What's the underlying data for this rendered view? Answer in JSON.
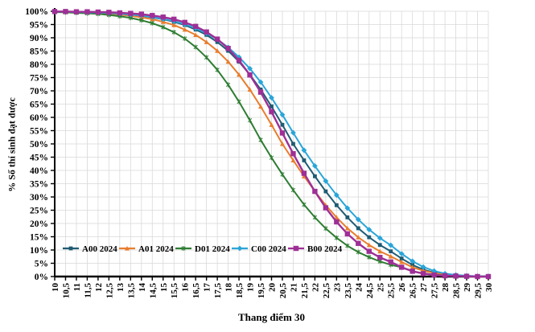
{
  "chart_data": {
    "type": "line",
    "title": "",
    "xlabel": "Thang điểm 30",
    "ylabel": "% Số thí sinh đạt được",
    "xlim": [
      10,
      30
    ],
    "ylim": [
      0,
      100
    ],
    "grid": true,
    "legend_position": "inside-bottom-left",
    "x": [
      10,
      10.5,
      11,
      11.5,
      12,
      12.5,
      13,
      13.5,
      14,
      14.5,
      15,
      15.5,
      16,
      16.5,
      17,
      17.5,
      18,
      18.5,
      19,
      19.5,
      20,
      20.5,
      21,
      21.5,
      22,
      22.5,
      23,
      23.5,
      24,
      24.5,
      25,
      25.5,
      26,
      26.5,
      27,
      27.5,
      28,
      28.5,
      29,
      29.5,
      30
    ],
    "x_tick_labels": [
      "10",
      "10,5",
      "11",
      "11,5",
      "12",
      "12,5",
      "13",
      "13,5",
      "14",
      "14,5",
      "15",
      "15,5",
      "16",
      "16,5",
      "17",
      "17,5",
      "18",
      "18,5",
      "19",
      "19,5",
      "20",
      "20,5",
      "21",
      "21,5",
      "22",
      "22,5",
      "23",
      "23,5",
      "24",
      "24,5",
      "25",
      "25,5",
      "26",
      "26,5",
      "27",
      "27,5",
      "28",
      "28,5",
      "29",
      "29,5",
      "30"
    ],
    "y_tick_labels": [
      "0%",
      "5%",
      "10%",
      "15%",
      "20%",
      "25%",
      "30%",
      "35%",
      "40%",
      "45%",
      "50%",
      "55%",
      "60%",
      "65%",
      "70%",
      "75%",
      "80%",
      "85%",
      "90%",
      "95%",
      "100%"
    ],
    "y_ticks": [
      0,
      5,
      10,
      15,
      20,
      25,
      30,
      35,
      40,
      45,
      50,
      55,
      60,
      65,
      70,
      75,
      80,
      85,
      90,
      95,
      100
    ],
    "gridline_color": "#d9d9d9",
    "axis_color": "#000000",
    "series": [
      {
        "name": "A00 2024",
        "color": "#1f5b73",
        "marker": "square",
        "values": [
          99.8,
          99.8,
          99.7,
          99.6,
          99.5,
          99.3,
          99.0,
          98.7,
          98.3,
          97.7,
          97.0,
          96.0,
          94.8,
          93.1,
          91.1,
          88.4,
          85.1,
          81.0,
          76.1,
          70.5,
          64.1,
          57.2,
          50.0,
          43.8,
          37.8,
          32.1,
          26.9,
          22.3,
          18.2,
          14.8,
          11.9,
          9.5,
          6.8,
          4.4,
          2.6,
          1.5,
          0.8,
          0.4,
          0.2,
          0.1,
          0.0
        ]
      },
      {
        "name": "A01 2024",
        "color": "#e87d2e",
        "marker": "triangle",
        "values": [
          99.8,
          99.7,
          99.6,
          99.5,
          99.3,
          99.0,
          98.7,
          98.3,
          97.7,
          97.0,
          96.0,
          94.8,
          93.1,
          91.1,
          88.4,
          85.1,
          81.0,
          76.1,
          70.5,
          64.1,
          57.2,
          50.0,
          43.8,
          37.8,
          32.1,
          26.9,
          22.3,
          18.2,
          14.8,
          11.9,
          9.5,
          7.6,
          5.5,
          3.5,
          2.2,
          1.3,
          0.7,
          0.4,
          0.2,
          0.1,
          0.0
        ]
      },
      {
        "name": "D01 2024",
        "color": "#2e7d32",
        "marker": "asterisk",
        "values": [
          99.7,
          99.6,
          99.4,
          99.2,
          99.0,
          98.6,
          98.1,
          97.5,
          96.6,
          95.5,
          94.0,
          92.1,
          89.7,
          86.5,
          82.6,
          77.9,
          72.3,
          65.9,
          58.9,
          51.5,
          44.8,
          38.5,
          32.6,
          27.1,
          22.3,
          18.1,
          14.6,
          11.6,
          9.2,
          7.3,
          5.7,
          4.4,
          3.5,
          2.0,
          1.2,
          0.7,
          0.4,
          0.2,
          0.1,
          0.1,
          0.0
        ]
      },
      {
        "name": "C00 2024",
        "color": "#2aa5d8",
        "marker": "diamond",
        "values": [
          99.8,
          99.8,
          99.7,
          99.6,
          99.5,
          99.3,
          99.1,
          98.7,
          98.4,
          97.8,
          97.1,
          96.3,
          95.1,
          93.6,
          91.7,
          89.4,
          86.4,
          82.7,
          78.4,
          73.3,
          67.4,
          61.0,
          54.2,
          47.6,
          41.7,
          36.0,
          30.7,
          25.8,
          21.5,
          17.7,
          14.5,
          11.8,
          8.6,
          5.8,
          3.6,
          2.1,
          1.1,
          0.6,
          0.3,
          0.1,
          0.1
        ]
      },
      {
        "name": "B00 2024",
        "color": "#9e2f96",
        "marker": "square-large",
        "values": [
          99.9,
          99.9,
          99.8,
          99.8,
          99.7,
          99.6,
          99.4,
          99.2,
          98.9,
          98.4,
          97.8,
          97.0,
          95.8,
          94.3,
          92.2,
          89.5,
          86.0,
          81.5,
          76.0,
          69.5,
          62.1,
          54.1,
          46.3,
          38.9,
          32.1,
          25.9,
          20.6,
          16.1,
          12.5,
          9.5,
          7.2,
          5.5,
          3.5,
          2.0,
          1.1,
          0.6,
          0.3,
          0.2,
          0.1,
          0.0,
          0.0
        ]
      }
    ]
  }
}
